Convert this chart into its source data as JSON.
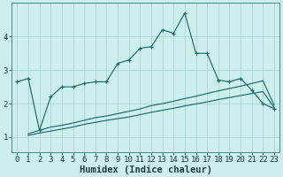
{
  "xlabel": "Humidex (Indice chaleur)",
  "bg_color": "#cceeed",
  "grid_color": "#aad4d2",
  "line_color": "#1e6b6b",
  "x_ticks": [
    0,
    1,
    2,
    3,
    4,
    5,
    6,
    7,
    8,
    9,
    10,
    11,
    12,
    13,
    14,
    15,
    16,
    17,
    18,
    19,
    20,
    21,
    22,
    23
  ],
  "y_ticks": [
    1,
    2,
    3,
    4
  ],
  "ylim": [
    0.55,
    5.0
  ],
  "xlim": [
    -0.5,
    23.5
  ],
  "main_x": [
    0,
    1,
    2,
    3,
    4,
    5,
    6,
    7,
    8,
    9,
    10,
    11,
    12,
    13,
    14,
    15,
    16,
    17,
    18,
    19,
    20,
    21,
    22,
    23
  ],
  "main_y": [
    2.65,
    2.75,
    1.2,
    2.2,
    2.5,
    2.5,
    2.6,
    2.65,
    2.65,
    3.2,
    3.3,
    3.65,
    3.7,
    4.2,
    4.1,
    4.7,
    3.5,
    3.5,
    2.7,
    2.65,
    2.75,
    2.4,
    2.0,
    1.85
  ],
  "lower1_x": [
    1,
    2,
    3,
    4,
    5,
    6,
    7,
    8,
    9,
    10,
    11,
    12,
    13,
    14,
    15,
    16,
    17,
    18,
    19,
    20,
    21,
    22,
    23
  ],
  "lower1_y": [
    1.1,
    1.2,
    1.3,
    1.35,
    1.42,
    1.5,
    1.58,
    1.63,
    1.7,
    1.77,
    1.84,
    1.94,
    2.0,
    2.07,
    2.15,
    2.22,
    2.3,
    2.38,
    2.45,
    2.52,
    2.6,
    2.68,
    1.95
  ],
  "lower2_x": [
    1,
    2,
    3,
    4,
    5,
    6,
    7,
    8,
    9,
    10,
    11,
    12,
    13,
    14,
    15,
    16,
    17,
    18,
    19,
    20,
    21,
    22,
    23
  ],
  "lower2_y": [
    1.05,
    1.12,
    1.18,
    1.24,
    1.3,
    1.38,
    1.44,
    1.5,
    1.55,
    1.6,
    1.67,
    1.74,
    1.8,
    1.86,
    1.93,
    1.99,
    2.05,
    2.12,
    2.18,
    2.24,
    2.3,
    2.36,
    1.88
  ],
  "xlabel_fontsize": 7.5,
  "tick_fontsize": 6.5
}
